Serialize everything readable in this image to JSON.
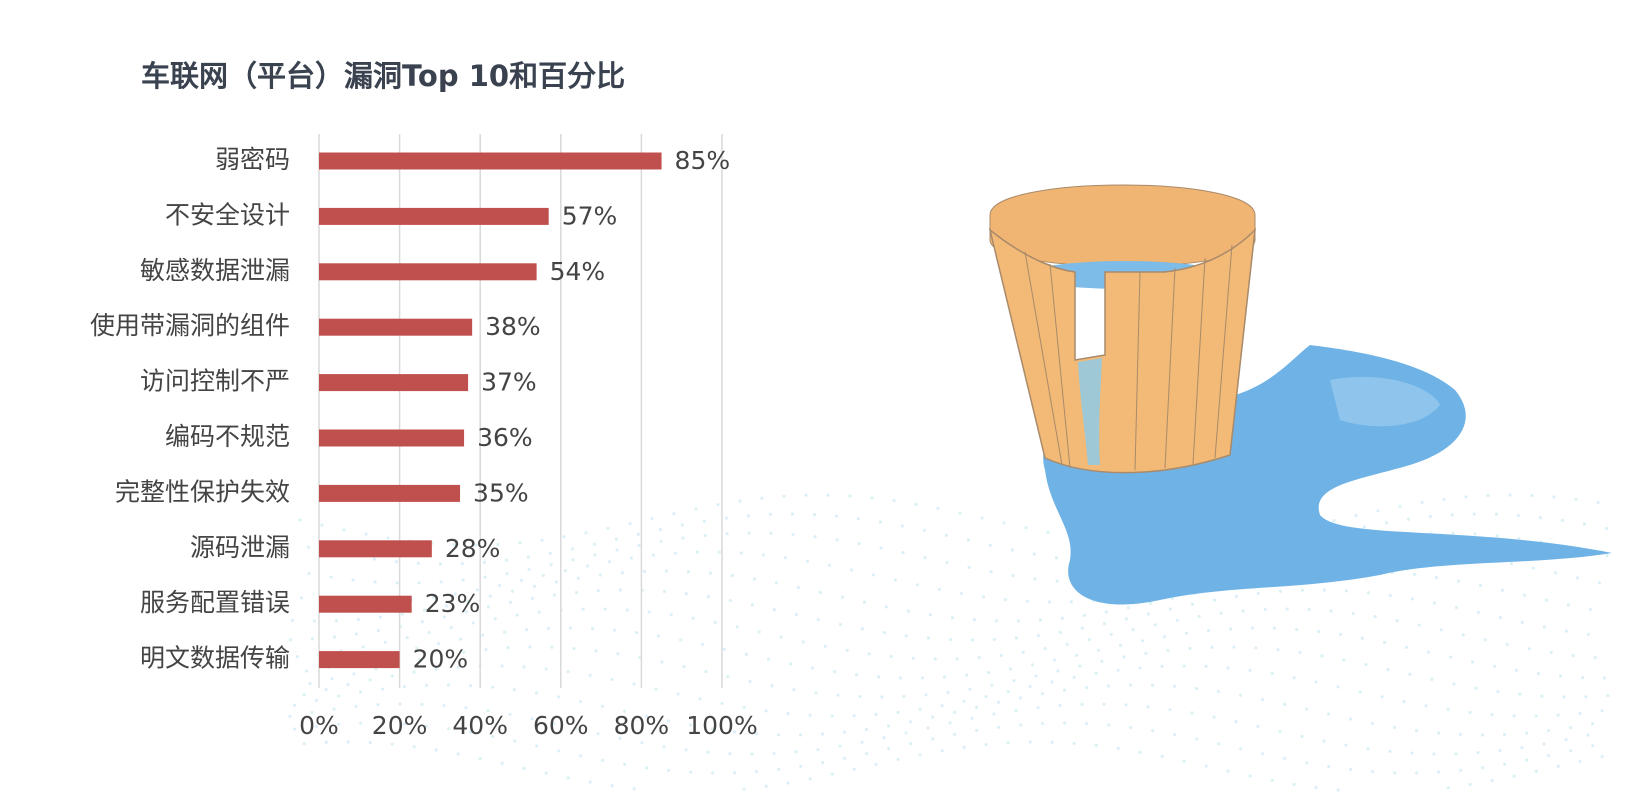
{
  "chart_data": {
    "type": "bar",
    "orientation": "horizontal",
    "title": "车联网（平台）漏洞Top 10和百分比",
    "categories": [
      "弱密码",
      "不安全设计",
      "敏感数据泄漏",
      "使用带漏洞的组件",
      "访问控制不严",
      "编码不规范",
      "完整性保护失效",
      "源码泄漏",
      "服务配置错误",
      "明文数据传输"
    ],
    "values": [
      85,
      57,
      54,
      38,
      37,
      36,
      35,
      28,
      23,
      20
    ],
    "value_labels": [
      "85%",
      "57%",
      "54%",
      "38%",
      "37%",
      "36%",
      "35%",
      "28%",
      "23%",
      "20%"
    ],
    "color": "#c0504d",
    "xlim": [
      0,
      100
    ],
    "xticks": [
      {
        "value": 0,
        "label": "0%"
      },
      {
        "value": 20,
        "label": "20%"
      },
      {
        "value": 40,
        "label": "40%"
      },
      {
        "value": 60,
        "label": "60%"
      },
      {
        "value": 80,
        "label": "80%"
      },
      {
        "value": 100,
        "label": "100%"
      }
    ],
    "grid": true
  }
}
